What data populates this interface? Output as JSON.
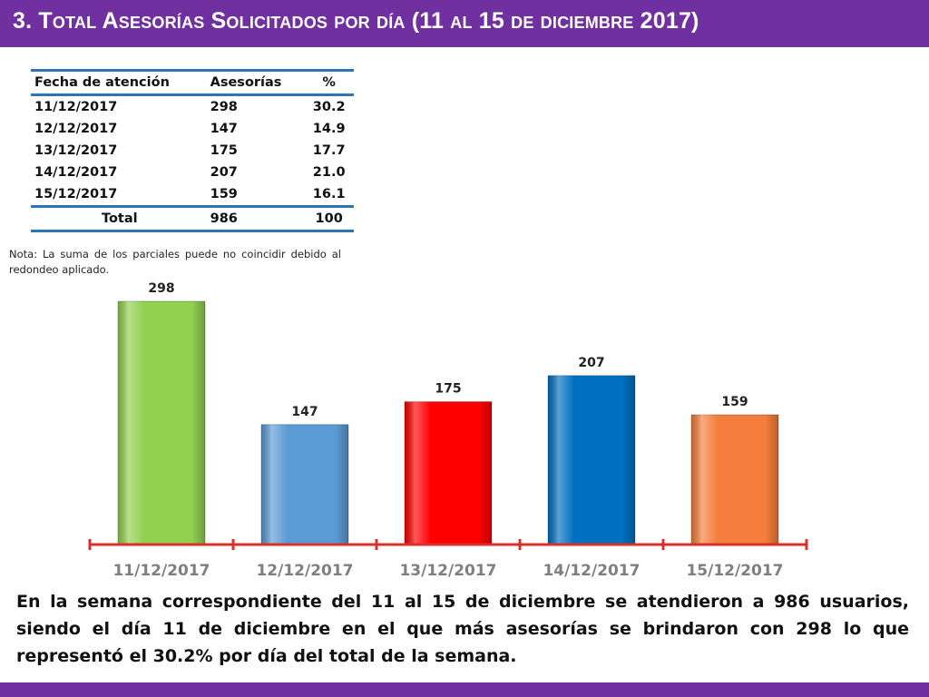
{
  "title": "3.  Total Asesorías Solicitados por día  (11 al 15 de diciembre 2017)",
  "table": {
    "headers": [
      "Fecha de atención",
      "Asesorías",
      "%"
    ],
    "rows": [
      [
        "11/12/2017",
        "298",
        "30.2"
      ],
      [
        "12/12/2017",
        "147",
        "14.9"
      ],
      [
        "13/12/2017",
        "175",
        "17.7"
      ],
      [
        "14/12/2017",
        "207",
        "21.0"
      ],
      [
        "15/12/2017",
        "159",
        "16.1"
      ]
    ],
    "total": [
      "Total",
      "986",
      "100"
    ]
  },
  "note": "Nota: La suma de los parciales puede no coincidir debido al redondeo aplicado.",
  "summary": "En la semana correspondiente del 11 al 15 de diciembre se atendieron a 986 usuarios, siendo el día 11 de diciembre en el que más asesorías se brindaron con 298 lo que representó el 30.2% por día del total de la semana.",
  "colors": {
    "title_bar": "#7030a0",
    "axis": "#d9302c",
    "bars": [
      "#92d050",
      "#5b9bd5",
      "#ff0000",
      "#0070c0",
      "#f47f3c"
    ]
  },
  "chart_data": {
    "type": "bar",
    "categories": [
      "11/12/2017",
      "12/12/2017",
      "13/12/2017",
      "14/12/2017",
      "15/12/2017"
    ],
    "values": [
      298,
      147,
      175,
      207,
      159
    ],
    "data_labels": [
      "298",
      "147",
      "175",
      "207",
      "159"
    ],
    "title": "",
    "xlabel": "",
    "ylabel": "",
    "grid": false
  }
}
